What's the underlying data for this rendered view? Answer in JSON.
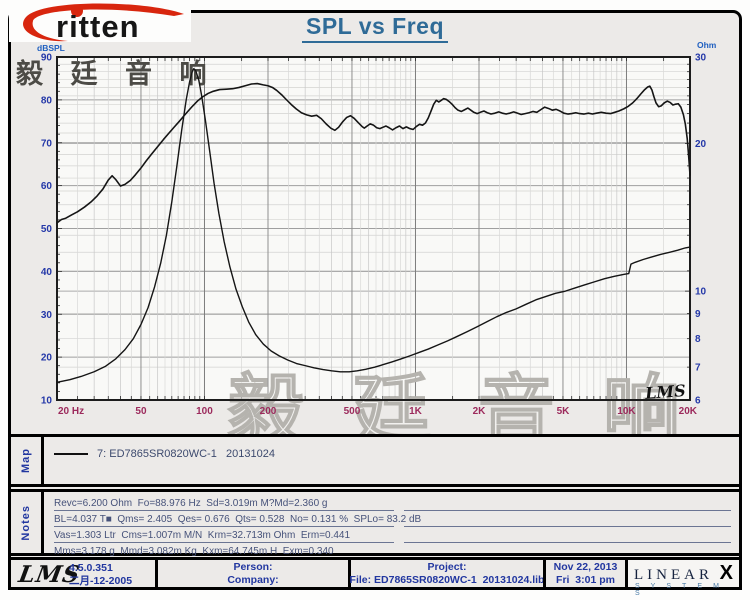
{
  "brand": {
    "logo_text": "ritten",
    "swoosh_color": "#d8260e"
  },
  "title": "SPL vs Freq",
  "chart_data": {
    "type": "line",
    "title": "SPL vs Freq",
    "x_axis": {
      "unit": "Hz",
      "scale": "log",
      "min": 20,
      "max": 20000,
      "tick_freqs": [
        20,
        50,
        100,
        200,
        500,
        1000,
        2000,
        5000,
        10000,
        20000
      ],
      "tick_labels": [
        "20 Hz",
        "50",
        "100",
        "200",
        "500",
        "1K",
        "2K",
        "5K",
        "10K",
        "20K"
      ]
    },
    "y_left": {
      "label": "dBSPL",
      "scale": "linear",
      "min": 10,
      "max": 90,
      "ticks": [
        90,
        80,
        70,
        60,
        50,
        40,
        30,
        20,
        10
      ]
    },
    "y_right": {
      "label": "Ohm",
      "scale": "log",
      "min": 6,
      "max": 30,
      "ticks": [
        30,
        20,
        10,
        9,
        8,
        7,
        6
      ]
    },
    "corner_label": "LMS",
    "watermark_top": "毅 廷 音 响",
    "watermark_center": "毅 廷 音 响",
    "series": [
      {
        "name": "SPL",
        "axis": "left",
        "color": "#151515",
        "points": [
          [
            20,
            51.3
          ],
          [
            21,
            52.1
          ],
          [
            22,
            52.4
          ],
          [
            23.5,
            53.2
          ],
          [
            25,
            53.9
          ],
          [
            27,
            55.0
          ],
          [
            29,
            56.2
          ],
          [
            31,
            57.6
          ],
          [
            33,
            59.2
          ],
          [
            35,
            61.3
          ],
          [
            36.5,
            62.3
          ],
          [
            38,
            61.4
          ],
          [
            40,
            59.9
          ],
          [
            42,
            60.3
          ],
          [
            44.5,
            61.2
          ],
          [
            47,
            62.5
          ],
          [
            50,
            64.1
          ],
          [
            53,
            65.8
          ],
          [
            56,
            67.3
          ],
          [
            60,
            69.1
          ],
          [
            64,
            70.8
          ],
          [
            68,
            72.3
          ],
          [
            72,
            73.7
          ],
          [
            76,
            75.0
          ],
          [
            80,
            76.3
          ],
          [
            84,
            77.5
          ],
          [
            88,
            78.6
          ],
          [
            93,
            79.8
          ],
          [
            98,
            80.7
          ],
          [
            104,
            81.5
          ],
          [
            110,
            82.0
          ],
          [
            118,
            82.4
          ],
          [
            127,
            82.5
          ],
          [
            136,
            82.6
          ],
          [
            146,
            82.9
          ],
          [
            156,
            83.3
          ],
          [
            167,
            83.7
          ],
          [
            178,
            83.8
          ],
          [
            190,
            83.5
          ],
          [
            200,
            83.3
          ],
          [
            210,
            82.9
          ],
          [
            220,
            82.2
          ],
          [
            232,
            81.2
          ],
          [
            245,
            80.0
          ],
          [
            258,
            78.9
          ],
          [
            272,
            77.9
          ],
          [
            288,
            77.0
          ],
          [
            305,
            76.5
          ],
          [
            322,
            76.2
          ],
          [
            340,
            76.4
          ],
          [
            358,
            75.6
          ],
          [
            377,
            74.4
          ],
          [
            397,
            73.4
          ],
          [
            415,
            72.9
          ],
          [
            432,
            73.6
          ],
          [
            452,
            74.9
          ],
          [
            472,
            75.9
          ],
          [
            492,
            76.3
          ],
          [
            512,
            75.7
          ],
          [
            535,
            74.7
          ],
          [
            558,
            73.8
          ],
          [
            572,
            73.4
          ],
          [
            590,
            73.9
          ],
          [
            610,
            74.4
          ],
          [
            632,
            74.1
          ],
          [
            655,
            73.5
          ],
          [
            678,
            73.3
          ],
          [
            700,
            73.6
          ],
          [
            725,
            73.9
          ],
          [
            750,
            73.5
          ],
          [
            778,
            73.0
          ],
          [
            808,
            73.5
          ],
          [
            840,
            73.9
          ],
          [
            872,
            73.3
          ],
          [
            905,
            73.7
          ],
          [
            940,
            73.3
          ],
          [
            975,
            73.1
          ],
          [
            1010,
            73.8
          ],
          [
            1045,
            74.3
          ],
          [
            1080,
            74.1
          ],
          [
            1115,
            74.6
          ],
          [
            1150,
            75.8
          ],
          [
            1185,
            77.4
          ],
          [
            1220,
            79.0
          ],
          [
            1255,
            79.9
          ],
          [
            1290,
            79.5
          ],
          [
            1325,
            79.9
          ],
          [
            1360,
            80.3
          ],
          [
            1400,
            80.1
          ],
          [
            1445,
            79.6
          ],
          [
            1490,
            79.0
          ],
          [
            1540,
            78.2
          ],
          [
            1590,
            77.6
          ],
          [
            1650,
            77.3
          ],
          [
            1710,
            77.7
          ],
          [
            1770,
            78.1
          ],
          [
            1830,
            77.6
          ],
          [
            1890,
            77.1
          ],
          [
            1960,
            76.8
          ],
          [
            2030,
            77.1
          ],
          [
            2110,
            77.4
          ],
          [
            2190,
            77.0
          ],
          [
            2280,
            76.7
          ],
          [
            2380,
            76.9
          ],
          [
            2480,
            77.2
          ],
          [
            2580,
            76.9
          ],
          [
            2690,
            76.7
          ],
          [
            2800,
            76.9
          ],
          [
            2920,
            77.2
          ],
          [
            3040,
            76.9
          ],
          [
            3170,
            76.6
          ],
          [
            3310,
            76.8
          ],
          [
            3450,
            77.0
          ],
          [
            3600,
            77.3
          ],
          [
            3760,
            77.1
          ],
          [
            3920,
            77.7
          ],
          [
            4090,
            78.3
          ],
          [
            4270,
            78.0
          ],
          [
            4450,
            77.6
          ],
          [
            4640,
            77.8
          ],
          [
            4840,
            77.4
          ],
          [
            5050,
            76.9
          ],
          [
            5270,
            76.7
          ],
          [
            5500,
            76.8
          ],
          [
            5750,
            77.0
          ],
          [
            6000,
            76.8
          ],
          [
            6300,
            76.7
          ],
          [
            6600,
            76.9
          ],
          [
            6900,
            76.7
          ],
          [
            7200,
            76.9
          ],
          [
            7600,
            77.1
          ],
          [
            8000,
            76.9
          ],
          [
            8400,
            76.8
          ],
          [
            8800,
            77.1
          ],
          [
            9200,
            77.4
          ],
          [
            9700,
            77.9
          ],
          [
            10200,
            78.5
          ],
          [
            10700,
            79.3
          ],
          [
            11200,
            80.3
          ],
          [
            11700,
            81.4
          ],
          [
            12200,
            82.4
          ],
          [
            12600,
            83.0
          ],
          [
            12900,
            83.2
          ],
          [
            13200,
            82.3
          ],
          [
            13500,
            80.7
          ],
          [
            13800,
            79.3
          ],
          [
            14200,
            78.4
          ],
          [
            14600,
            78.6
          ],
          [
            15100,
            79.3
          ],
          [
            15600,
            79.7
          ],
          [
            16100,
            79.4
          ],
          [
            16600,
            78.8
          ],
          [
            17100,
            79.0
          ],
          [
            17600,
            79.1
          ],
          [
            18100,
            78.3
          ],
          [
            18600,
            76.6
          ],
          [
            19000,
            74.4
          ],
          [
            19400,
            71.0
          ],
          [
            19700,
            67.0
          ],
          [
            20000,
            62.5
          ]
        ]
      },
      {
        "name": "Impedance",
        "axis": "right",
        "color": "#151515",
        "points": [
          [
            20,
            6.52
          ],
          [
            23,
            6.6
          ],
          [
            26,
            6.7
          ],
          [
            30,
            6.85
          ],
          [
            34,
            7.03
          ],
          [
            38,
            7.28
          ],
          [
            42,
            7.6
          ],
          [
            46,
            8.0
          ],
          [
            50,
            8.55
          ],
          [
            54,
            9.25
          ],
          [
            58,
            10.2
          ],
          [
            62,
            11.4
          ],
          [
            66,
            13.0
          ],
          [
            70,
            15.2
          ],
          [
            74,
            18.0
          ],
          [
            78,
            21.3
          ],
          [
            82,
            24.6
          ],
          [
            85,
            26.7
          ],
          [
            87.5,
            28.0
          ],
          [
            89,
            28.4
          ],
          [
            91,
            28.1
          ],
          [
            94,
            26.9
          ],
          [
            97,
            25.0
          ],
          [
            101,
            22.3
          ],
          [
            106,
            19.2
          ],
          [
            111,
            16.6
          ],
          [
            117,
            14.4
          ],
          [
            124,
            12.6
          ],
          [
            132,
            11.2
          ],
          [
            141,
            10.1
          ],
          [
            151,
            9.3
          ],
          [
            162,
            8.65
          ],
          [
            175,
            8.15
          ],
          [
            190,
            7.8
          ],
          [
            207,
            7.55
          ],
          [
            226,
            7.38
          ],
          [
            248,
            7.24
          ],
          [
            273,
            7.12
          ],
          [
            300,
            7.05
          ],
          [
            330,
            6.98
          ],
          [
            365,
            6.92
          ],
          [
            400,
            6.88
          ],
          [
            440,
            6.85
          ],
          [
            485,
            6.85
          ],
          [
            530,
            6.88
          ],
          [
            580,
            6.93
          ],
          [
            640,
            7.0
          ],
          [
            700,
            7.08
          ],
          [
            770,
            7.17
          ],
          [
            850,
            7.27
          ],
          [
            940,
            7.38
          ],
          [
            1040,
            7.5
          ],
          [
            1150,
            7.62
          ],
          [
            1280,
            7.77
          ],
          [
            1420,
            7.92
          ],
          [
            1580,
            8.09
          ],
          [
            1760,
            8.27
          ],
          [
            1960,
            8.46
          ],
          [
            2180,
            8.66
          ],
          [
            2430,
            8.87
          ],
          [
            2700,
            9.05
          ],
          [
            3000,
            9.2
          ],
          [
            3340,
            9.4
          ],
          [
            3720,
            9.6
          ],
          [
            4140,
            9.75
          ],
          [
            4610,
            9.9
          ],
          [
            5130,
            10.0
          ],
          [
            5710,
            10.15
          ],
          [
            6350,
            10.3
          ],
          [
            7070,
            10.45
          ],
          [
            7870,
            10.6
          ],
          [
            8760,
            10.72
          ],
          [
            9750,
            10.82
          ],
          [
            10250,
            10.86
          ],
          [
            10500,
            11.35
          ],
          [
            11000,
            11.45
          ],
          [
            12000,
            11.6
          ],
          [
            13000,
            11.72
          ],
          [
            14500,
            11.88
          ],
          [
            16000,
            12.0
          ],
          [
            17500,
            12.12
          ],
          [
            19000,
            12.25
          ],
          [
            20000,
            12.3
          ]
        ]
      }
    ]
  },
  "map": {
    "label": "Map",
    "legend": "7: ED7865SR0820WC-1   20131024"
  },
  "notes": {
    "label": "Notes",
    "lines": [
      "Revc=6.200 Ohm  Fo=88.976 Hz  Sd=3.019m M?Md=2.360 g",
      "BL=4.037 T■  Qms= 2.405  Qes= 0.676  Qts= 0.528  No= 0.131 %  SPLo= 83.2 dB",
      "Vas=1.303 Ltr  Cms=1.007m M/N  Krm=32.713m Ohm  Erm=0.441",
      "Mms=3.178 g  Mmd=3.082m Kg  Kxm=64.745m H  Exm=0.340"
    ]
  },
  "footer": {
    "lms_logo": "LMS",
    "version": "4.5.0.351",
    "version_date": "二月-12-2005",
    "person_label": "Person:",
    "company_label": "Company:",
    "project_label": "Project:",
    "file_line": "File: ED7865SR0820WC-1  20131024.lib",
    "date": "Nov 22, 2013",
    "time": "Fri  3:01 pm",
    "linearx_letters": "LINEAR",
    "linearx_x": "X",
    "systems": "S Y S T E M S"
  }
}
